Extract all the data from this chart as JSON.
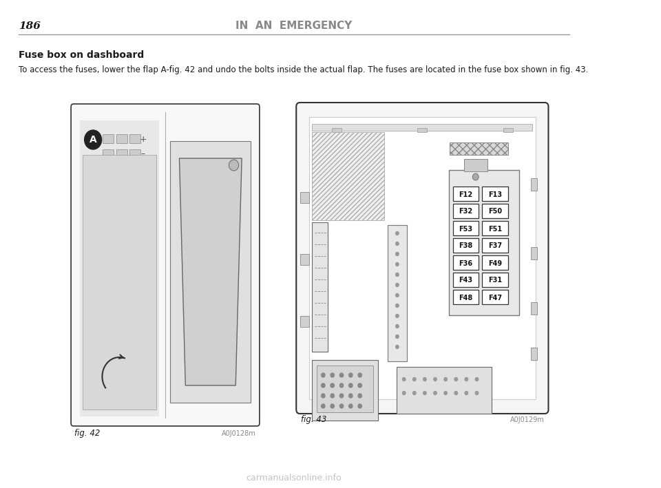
{
  "page_number": "186",
  "header_title": "IN  AN  EMERGENCY",
  "section_title": "Fuse box on dashboard",
  "body_text": "To access the fuses, lower the flap A-fig. 42 and undo the bolts inside the actual flap. The fuses are located in the fuse box shown in fig. 43.",
  "fig42_label": "fig. 42",
  "fig42_code": "A0J0128m",
  "fig43_label": "fig. 43",
  "fig43_code": "A0J0129m",
  "fuse_labels": [
    [
      "F12",
      "F13"
    ],
    [
      "F32",
      "F50"
    ],
    [
      "F53",
      "F51"
    ],
    [
      "F38",
      "F37"
    ],
    [
      "F36",
      "F49"
    ],
    [
      "F43",
      "F31"
    ],
    [
      "F48",
      "F47"
    ]
  ],
  "watermark": "carmanualsonline.info",
  "bg_color": "#ffffff",
  "text_color": "#1a1a1a",
  "fig_border_color": "#333333"
}
